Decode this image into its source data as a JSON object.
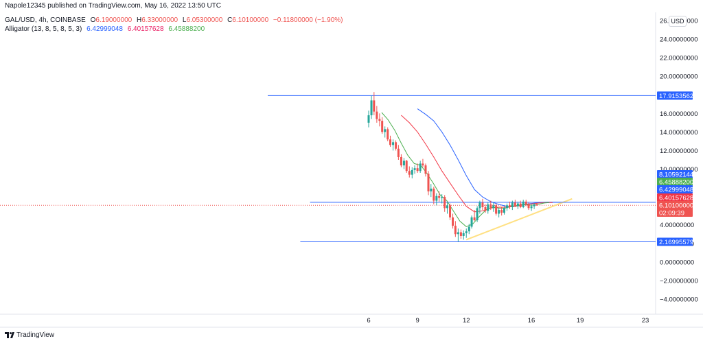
{
  "header": {
    "published": "Napole12345 published on TradingView.com, May 16, 2022 13:50 UTC",
    "symbol": "GAL/USD, 4h, COINBASE",
    "o_label": "O",
    "o_value": "6.19000000",
    "h_label": "H",
    "h_value": "6.33000000",
    "l_label": "L",
    "l_value": "6.05300000",
    "c_label": "C",
    "c_value": "6.10100000",
    "change": "−0.11800000 (−1.90%)",
    "alligator_label": "Alligator (13, 8, 5, 8, 5, 3)",
    "jaw": "6.42999048",
    "teeth": "6.40157628",
    "lips": "6.45888200"
  },
  "currency": "USD",
  "brand": "TradingView",
  "colors": {
    "up": "#26a69a",
    "down": "#ef5350",
    "jaw": "#2962ff",
    "teeth": "#f23645",
    "lips": "#4caf50",
    "hline": "#2962ff",
    "trend": "#ffe082"
  },
  "chart_data": {
    "type": "candlestick",
    "ylim": [
      -5,
      26
    ],
    "y_ticks": [
      "26.00000000",
      "24.00000000",
      "22.00000000",
      "20.00000000",
      "16.00000000",
      "14.00000000",
      "12.00000000",
      "10.00000000",
      "4.00000000",
      "2.00000000",
      "0.00000000",
      "−2.00000000",
      "−4.00000000"
    ],
    "y_tick_values": [
      26,
      24,
      22,
      20,
      16,
      14,
      12,
      10,
      4,
      2,
      0,
      -2,
      -4
    ],
    "x_ticks": [
      "6",
      "9",
      "12",
      "16",
      "19",
      "23"
    ],
    "x_tick_days": [
      6,
      9,
      12,
      16,
      19,
      23
    ],
    "x_range_days": [
      -5.6,
      23.5
    ],
    "horizontal_lines": [
      {
        "value": 17.9153562,
        "label": "17.91535620",
        "from_day": -0.2
      },
      {
        "value": 6.42999048,
        "label": "6.42999048",
        "from_day": 2.4
      },
      {
        "value": 2.16995579,
        "label": "2.16995579",
        "from_day": 1.8
      }
    ],
    "price_labels": [
      {
        "value": 8.10592144,
        "label": "8.10592144",
        "color": "#2962ff"
      },
      {
        "value": 6.458882,
        "label": "6.45888200",
        "color": "#4caf50"
      },
      {
        "value": 6.42999048,
        "label": "6.42999048",
        "color": "#2962ff"
      },
      {
        "value": 6.40157628,
        "label": "6.40157628",
        "color": "#f23645"
      },
      {
        "value": 6.101,
        "label": "6.10100000",
        "color": "#ef5350"
      }
    ],
    "countdown": "02:09:39",
    "last_price": 6.101,
    "trendline": {
      "from": [
        12.0,
        2.4
      ],
      "to": [
        18.5,
        6.8
      ]
    },
    "candles": [
      {
        "t": 6.0,
        "o": 15.0,
        "h": 16.3,
        "l": 14.5,
        "c": 15.8
      },
      {
        "t": 6.17,
        "o": 15.8,
        "h": 17.9,
        "l": 15.4,
        "c": 17.4
      },
      {
        "t": 6.33,
        "o": 17.4,
        "h": 18.3,
        "l": 15.8,
        "c": 16.2
      },
      {
        "t": 6.5,
        "o": 16.2,
        "h": 16.8,
        "l": 15.0,
        "c": 15.4
      },
      {
        "t": 6.67,
        "o": 15.4,
        "h": 16.0,
        "l": 14.6,
        "c": 15.2
      },
      {
        "t": 6.83,
        "o": 15.2,
        "h": 15.6,
        "l": 13.8,
        "c": 14.0
      },
      {
        "t": 7.0,
        "o": 14.0,
        "h": 14.6,
        "l": 13.4,
        "c": 14.3
      },
      {
        "t": 7.17,
        "o": 14.3,
        "h": 14.5,
        "l": 13.0,
        "c": 13.2
      },
      {
        "t": 7.33,
        "o": 13.2,
        "h": 13.6,
        "l": 12.4,
        "c": 12.6
      },
      {
        "t": 7.5,
        "o": 12.6,
        "h": 13.2,
        "l": 12.0,
        "c": 12.9
      },
      {
        "t": 7.67,
        "o": 12.9,
        "h": 13.1,
        "l": 12.0,
        "c": 12.2
      },
      {
        "t": 7.83,
        "o": 12.2,
        "h": 12.6,
        "l": 11.0,
        "c": 11.3
      },
      {
        "t": 8.0,
        "o": 11.3,
        "h": 11.6,
        "l": 10.2,
        "c": 10.4
      },
      {
        "t": 8.17,
        "o": 10.4,
        "h": 11.2,
        "l": 10.0,
        "c": 10.9
      },
      {
        "t": 8.33,
        "o": 10.9,
        "h": 11.0,
        "l": 9.6,
        "c": 9.8
      },
      {
        "t": 8.5,
        "o": 9.8,
        "h": 10.3,
        "l": 9.1,
        "c": 9.4
      },
      {
        "t": 8.67,
        "o": 9.4,
        "h": 10.2,
        "l": 9.0,
        "c": 9.9
      },
      {
        "t": 8.83,
        "o": 9.9,
        "h": 10.4,
        "l": 9.5,
        "c": 10.1
      },
      {
        "t": 9.0,
        "o": 10.1,
        "h": 10.6,
        "l": 9.6,
        "c": 9.8
      },
      {
        "t": 9.17,
        "o": 9.8,
        "h": 10.9,
        "l": 9.6,
        "c": 10.6
      },
      {
        "t": 9.33,
        "o": 10.6,
        "h": 11.1,
        "l": 10.2,
        "c": 10.4
      },
      {
        "t": 9.5,
        "o": 10.4,
        "h": 10.6,
        "l": 9.2,
        "c": 9.5
      },
      {
        "t": 9.67,
        "o": 9.5,
        "h": 9.8,
        "l": 7.2,
        "c": 7.6
      },
      {
        "t": 9.83,
        "o": 7.6,
        "h": 8.4,
        "l": 7.0,
        "c": 7.9
      },
      {
        "t": 10.0,
        "o": 7.9,
        "h": 8.1,
        "l": 6.2,
        "c": 6.6
      },
      {
        "t": 10.17,
        "o": 6.6,
        "h": 7.4,
        "l": 6.1,
        "c": 7.1
      },
      {
        "t": 10.33,
        "o": 7.1,
        "h": 7.6,
        "l": 6.5,
        "c": 6.9
      },
      {
        "t": 10.5,
        "o": 6.9,
        "h": 7.3,
        "l": 6.3,
        "c": 7.0
      },
      {
        "t": 10.67,
        "o": 7.0,
        "h": 7.2,
        "l": 5.4,
        "c": 5.8
      },
      {
        "t": 10.83,
        "o": 5.8,
        "h": 6.4,
        "l": 5.2,
        "c": 6.1
      },
      {
        "t": 11.0,
        "o": 6.1,
        "h": 6.3,
        "l": 4.5,
        "c": 4.8
      },
      {
        "t": 11.17,
        "o": 4.8,
        "h": 5.2,
        "l": 3.6,
        "c": 3.9
      },
      {
        "t": 11.33,
        "o": 3.9,
        "h": 4.4,
        "l": 2.7,
        "c": 3.0
      },
      {
        "t": 11.5,
        "o": 3.0,
        "h": 3.6,
        "l": 2.2,
        "c": 3.2
      },
      {
        "t": 11.67,
        "o": 3.2,
        "h": 3.5,
        "l": 2.5,
        "c": 2.8
      },
      {
        "t": 11.83,
        "o": 2.8,
        "h": 3.4,
        "l": 2.4,
        "c": 3.1
      },
      {
        "t": 12.0,
        "o": 3.1,
        "h": 3.6,
        "l": 2.6,
        "c": 3.3
      },
      {
        "t": 12.17,
        "o": 3.3,
        "h": 4.1,
        "l": 3.0,
        "c": 3.8
      },
      {
        "t": 12.33,
        "o": 3.8,
        "h": 5.0,
        "l": 3.6,
        "c": 4.8
      },
      {
        "t": 12.5,
        "o": 4.8,
        "h": 5.6,
        "l": 4.4,
        "c": 4.5
      },
      {
        "t": 12.67,
        "o": 4.5,
        "h": 6.0,
        "l": 4.3,
        "c": 5.8
      },
      {
        "t": 12.83,
        "o": 5.8,
        "h": 6.6,
        "l": 5.2,
        "c": 6.4
      },
      {
        "t": 13.0,
        "o": 6.4,
        "h": 6.8,
        "l": 5.6,
        "c": 5.9
      },
      {
        "t": 13.17,
        "o": 5.9,
        "h": 6.2,
        "l": 5.3,
        "c": 5.5
      },
      {
        "t": 13.33,
        "o": 5.5,
        "h": 6.4,
        "l": 5.2,
        "c": 6.2
      },
      {
        "t": 13.5,
        "o": 6.2,
        "h": 6.6,
        "l": 5.6,
        "c": 5.8
      },
      {
        "t": 13.67,
        "o": 5.8,
        "h": 6.4,
        "l": 5.4,
        "c": 6.1
      },
      {
        "t": 13.83,
        "o": 6.1,
        "h": 6.3,
        "l": 5.0,
        "c": 5.2
      },
      {
        "t": 14.0,
        "o": 5.2,
        "h": 5.8,
        "l": 4.8,
        "c": 5.6
      },
      {
        "t": 14.17,
        "o": 5.6,
        "h": 5.9,
        "l": 5.0,
        "c": 5.3
      },
      {
        "t": 14.33,
        "o": 5.3,
        "h": 6.0,
        "l": 5.1,
        "c": 5.8
      },
      {
        "t": 14.5,
        "o": 5.8,
        "h": 6.3,
        "l": 5.5,
        "c": 6.1
      },
      {
        "t": 14.67,
        "o": 6.1,
        "h": 6.5,
        "l": 5.7,
        "c": 5.9
      },
      {
        "t": 14.83,
        "o": 5.9,
        "h": 6.6,
        "l": 5.6,
        "c": 6.4
      },
      {
        "t": 15.0,
        "o": 6.4,
        "h": 6.7,
        "l": 5.9,
        "c": 6.0
      },
      {
        "t": 15.17,
        "o": 6.0,
        "h": 6.5,
        "l": 5.7,
        "c": 6.3
      },
      {
        "t": 15.33,
        "o": 6.3,
        "h": 6.6,
        "l": 5.8,
        "c": 5.9
      },
      {
        "t": 15.5,
        "o": 5.9,
        "h": 6.7,
        "l": 5.8,
        "c": 6.5
      },
      {
        "t": 15.67,
        "o": 6.5,
        "h": 6.7,
        "l": 6.0,
        "c": 6.2
      },
      {
        "t": 15.83,
        "o": 6.2,
        "h": 6.4,
        "l": 5.6,
        "c": 5.8
      },
      {
        "t": 16.0,
        "o": 5.8,
        "h": 6.2,
        "l": 5.5,
        "c": 6.0
      },
      {
        "t": 16.17,
        "o": 6.0,
        "h": 6.3,
        "l": 5.7,
        "c": 6.19
      },
      {
        "t": 16.33,
        "o": 6.19,
        "h": 6.33,
        "l": 6.053,
        "c": 6.101
      }
    ],
    "series": [
      {
        "name": "Alligator Jaw",
        "color": "#2962ff",
        "points": [
          [
            9.0,
            16.5
          ],
          [
            9.5,
            15.9
          ],
          [
            10.0,
            15.2
          ],
          [
            10.5,
            14.0
          ],
          [
            11.0,
            12.6
          ],
          [
            11.5,
            11.0
          ],
          [
            12.0,
            9.3
          ],
          [
            12.5,
            7.8
          ],
          [
            13.0,
            7.0
          ],
          [
            13.5,
            6.5
          ],
          [
            14.0,
            6.2
          ],
          [
            14.5,
            6.0
          ],
          [
            15.0,
            6.0
          ],
          [
            15.5,
            6.2
          ],
          [
            16.0,
            6.3
          ],
          [
            16.5,
            6.4
          ],
          [
            17.0,
            6.45
          ],
          [
            17.5,
            6.45
          ],
          [
            18.1,
            6.43
          ]
        ]
      },
      {
        "name": "Alligator Teeth",
        "color": "#f23645",
        "points": [
          [
            8.0,
            15.8
          ],
          [
            8.5,
            15.0
          ],
          [
            9.0,
            14.0
          ],
          [
            9.5,
            12.7
          ],
          [
            10.0,
            11.3
          ],
          [
            10.5,
            9.8
          ],
          [
            11.0,
            8.5
          ],
          [
            11.5,
            7.2
          ],
          [
            12.0,
            6.0
          ],
          [
            12.5,
            5.4
          ],
          [
            13.0,
            5.5
          ],
          [
            13.5,
            5.8
          ],
          [
            14.0,
            5.9
          ],
          [
            14.5,
            5.9
          ],
          [
            15.0,
            6.0
          ],
          [
            15.5,
            6.15
          ],
          [
            16.0,
            6.25
          ],
          [
            16.5,
            6.35
          ],
          [
            17.0,
            6.4
          ],
          [
            17.3,
            6.4
          ]
        ]
      },
      {
        "name": "Alligator Lips",
        "color": "#4caf50",
        "points": [
          [
            6.8,
            16.1
          ],
          [
            7.2,
            15.3
          ],
          [
            7.6,
            14.2
          ],
          [
            8.0,
            12.8
          ],
          [
            8.4,
            11.5
          ],
          [
            8.8,
            10.6
          ],
          [
            9.2,
            10.4
          ],
          [
            9.6,
            9.5
          ],
          [
            10.0,
            8.4
          ],
          [
            10.4,
            7.2
          ],
          [
            10.8,
            6.6
          ],
          [
            11.2,
            5.5
          ],
          [
            11.6,
            4.4
          ],
          [
            12.0,
            3.8
          ],
          [
            12.4,
            4.1
          ],
          [
            12.8,
            4.9
          ],
          [
            13.2,
            5.6
          ],
          [
            13.6,
            5.9
          ],
          [
            14.0,
            5.8
          ],
          [
            14.4,
            5.8
          ],
          [
            14.8,
            6.0
          ],
          [
            15.2,
            6.1
          ],
          [
            15.6,
            6.2
          ],
          [
            16.0,
            6.1
          ],
          [
            16.4,
            6.2
          ],
          [
            16.8,
            6.35
          ],
          [
            17.1,
            6.4
          ]
        ]
      }
    ]
  }
}
